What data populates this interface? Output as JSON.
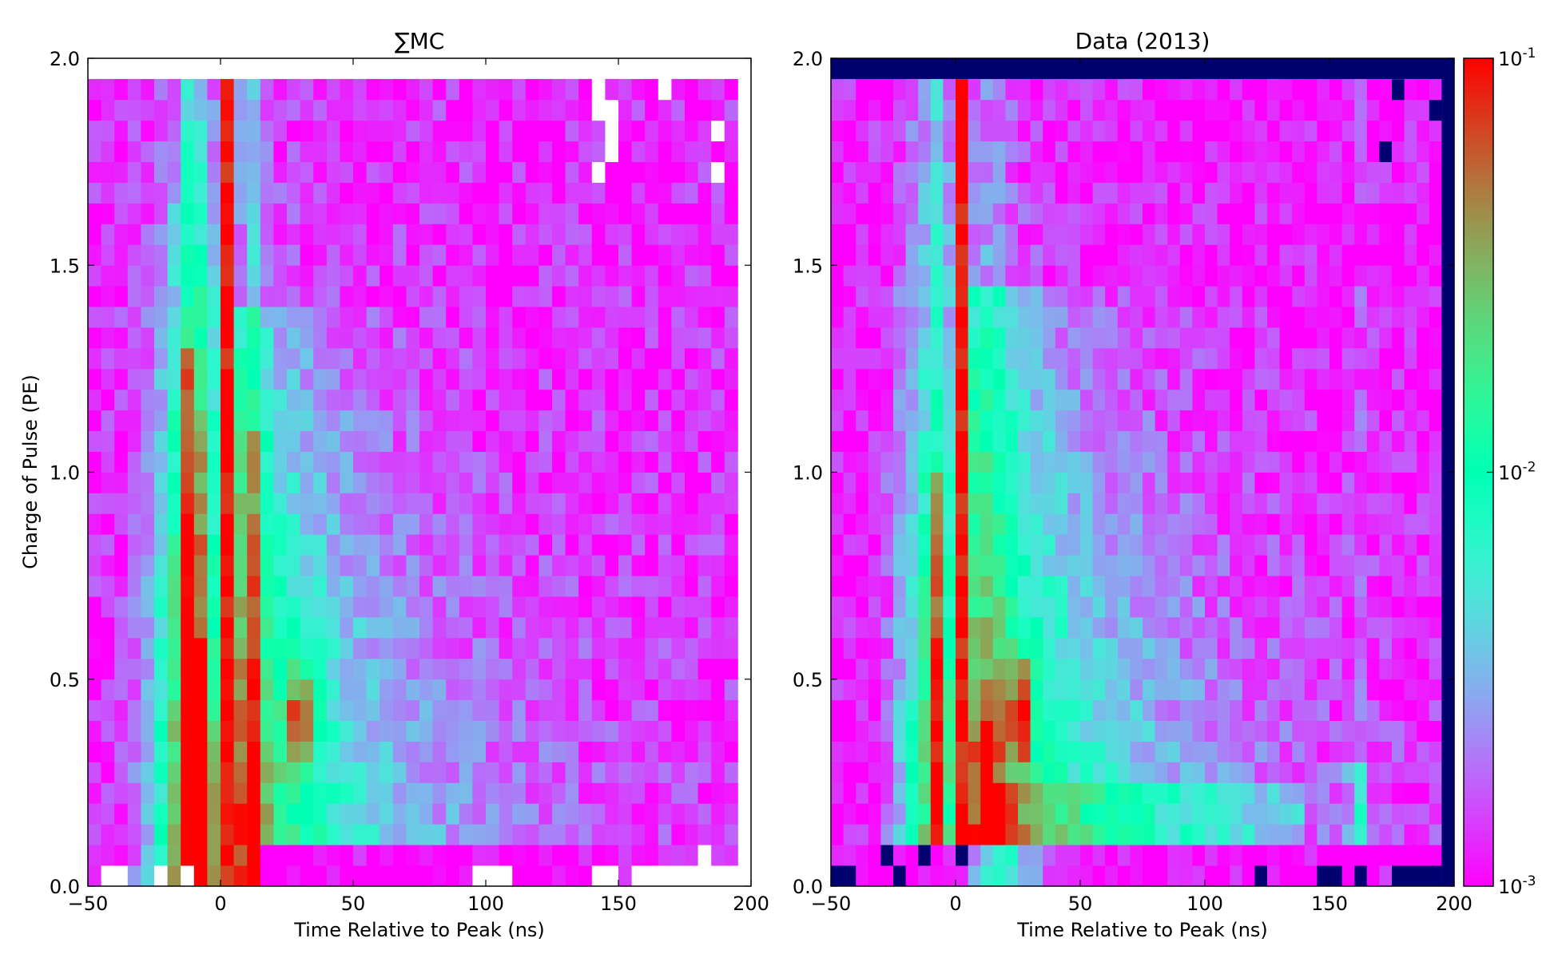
{
  "chart_data": [
    {
      "type": "heatmap",
      "title": "∑MC",
      "xlabel": "Time Relative to Peak (ns)",
      "ylabel": "Charge of Pulse (PE)",
      "xlim": [
        -50,
        200
      ],
      "ylim": [
        0.0,
        2.0
      ],
      "x_ticks": [
        "−50",
        "0",
        "50",
        "100",
        "150",
        "200"
      ],
      "y_ticks": [
        "0.0",
        "0.5",
        "1.0",
        "1.5",
        "2.0"
      ],
      "bin_width_ns": 5,
      "bin_height_pe": 0.05,
      "x_data_extent": [
        -50,
        195
      ],
      "y_data_extent": [
        0.0,
        1.95
      ],
      "color_scale": "log",
      "features": {
        "prompt_peak_ns": [
          0,
          5
        ],
        "prepulse_band_ns": [
          -15,
          -5
        ],
        "late_band_ns": [
          10,
          15
        ],
        "afterpulse_hotspot": {
          "t_ns": [
            25,
            35
          ],
          "q_pe": [
            0.3,
            0.5
          ]
        },
        "empty_bins": [
          {
            "t": -45,
            "q": 0.0
          },
          {
            "t": -40,
            "q": 0.0
          },
          {
            "t": -25,
            "q": 0.0
          },
          {
            "t": -15,
            "q": 0.0
          },
          {
            "t": 95,
            "q": 0.0
          },
          {
            "t": 100,
            "q": 0.0
          },
          {
            "t": 105,
            "q": 0.0
          },
          {
            "t": 140,
            "q": 0.0
          },
          {
            "t": 145,
            "q": 0.0
          },
          {
            "t": 155,
            "q": 0.0
          },
          {
            "t": 160,
            "q": 0.0
          },
          {
            "t": 165,
            "q": 0.0
          },
          {
            "t": 170,
            "q": 0.0
          },
          {
            "t": 175,
            "q": 0.0
          },
          {
            "t": 180,
            "q": 0.0
          },
          {
            "t": 185,
            "q": 0.0
          },
          {
            "t": 190,
            "q": 0.0
          },
          {
            "t": 180,
            "q": 0.05
          },
          {
            "t": 140,
            "q": 1.7
          },
          {
            "t": 145,
            "q": 1.75
          },
          {
            "t": 145,
            "q": 1.8
          },
          {
            "t": 140,
            "q": 1.85
          },
          {
            "t": 145,
            "q": 1.85
          },
          {
            "t": 140,
            "q": 1.9
          },
          {
            "t": 165,
            "q": 1.9
          },
          {
            "t": 185,
            "q": 1.7
          },
          {
            "t": 185,
            "q": 1.8
          }
        ]
      }
    },
    {
      "type": "heatmap",
      "title": "Data (2013)",
      "xlabel": "Time Relative to Peak (ns)",
      "ylabel": "",
      "xlim": [
        -50,
        200
      ],
      "ylim": [
        0.0,
        2.0
      ],
      "x_ticks": [
        "−50",
        "0",
        "50",
        "100",
        "150",
        "200"
      ],
      "y_ticks": [
        "0.0",
        "0.5",
        "1.0",
        "1.5",
        "2.0"
      ],
      "bin_width_ns": 5,
      "bin_height_pe": 0.05,
      "color_scale": "log",
      "features": {
        "prompt_peak_ns": [
          0,
          5
        ],
        "prepulse_band_ns": [
          -10,
          -5
        ],
        "late_band_ns": [
          10,
          35
        ],
        "afterpulse_hotspot": {
          "t_ns": [
            25,
            30
          ],
          "q_pe": [
            0.35,
            0.5
          ]
        },
        "secondary_band_ns": [
          160,
          165
        ],
        "empty_border": {
          "top_row_q": 1.95,
          "right_column_t": 195
        },
        "empty_bins": [
          {
            "t": -50,
            "q": 0.0
          },
          {
            "t": -45,
            "q": 0.0
          },
          {
            "t": -30,
            "q": 0.05
          },
          {
            "t": -25,
            "q": 0.0
          },
          {
            "t": -15,
            "q": 0.05
          },
          {
            "t": 0,
            "q": 0.05
          },
          {
            "t": 120,
            "q": 0.0
          },
          {
            "t": 145,
            "q": 0.0
          },
          {
            "t": 150,
            "q": 0.0
          },
          {
            "t": 160,
            "q": 0.0
          },
          {
            "t": 175,
            "q": 0.0
          },
          {
            "t": 180,
            "q": 0.0
          },
          {
            "t": 185,
            "q": 0.0
          },
          {
            "t": 190,
            "q": 0.0
          },
          {
            "t": 175,
            "q": 1.9
          },
          {
            "t": 190,
            "q": 1.85
          },
          {
            "t": 170,
            "q": 1.75
          }
        ]
      }
    }
  ],
  "colorbar": {
    "scale": "log",
    "range": [
      0.001,
      0.1
    ],
    "ticks": [
      {
        "base": "10",
        "exp": "-1",
        "value": 0.1
      },
      {
        "base": "10",
        "exp": "-2",
        "value": 0.01
      },
      {
        "base": "10",
        "exp": "-3",
        "value": 0.001
      }
    ],
    "colormap": "rainbow",
    "empty_bin_color": "#ffffff",
    "zero_bin_color": "#00006e"
  }
}
